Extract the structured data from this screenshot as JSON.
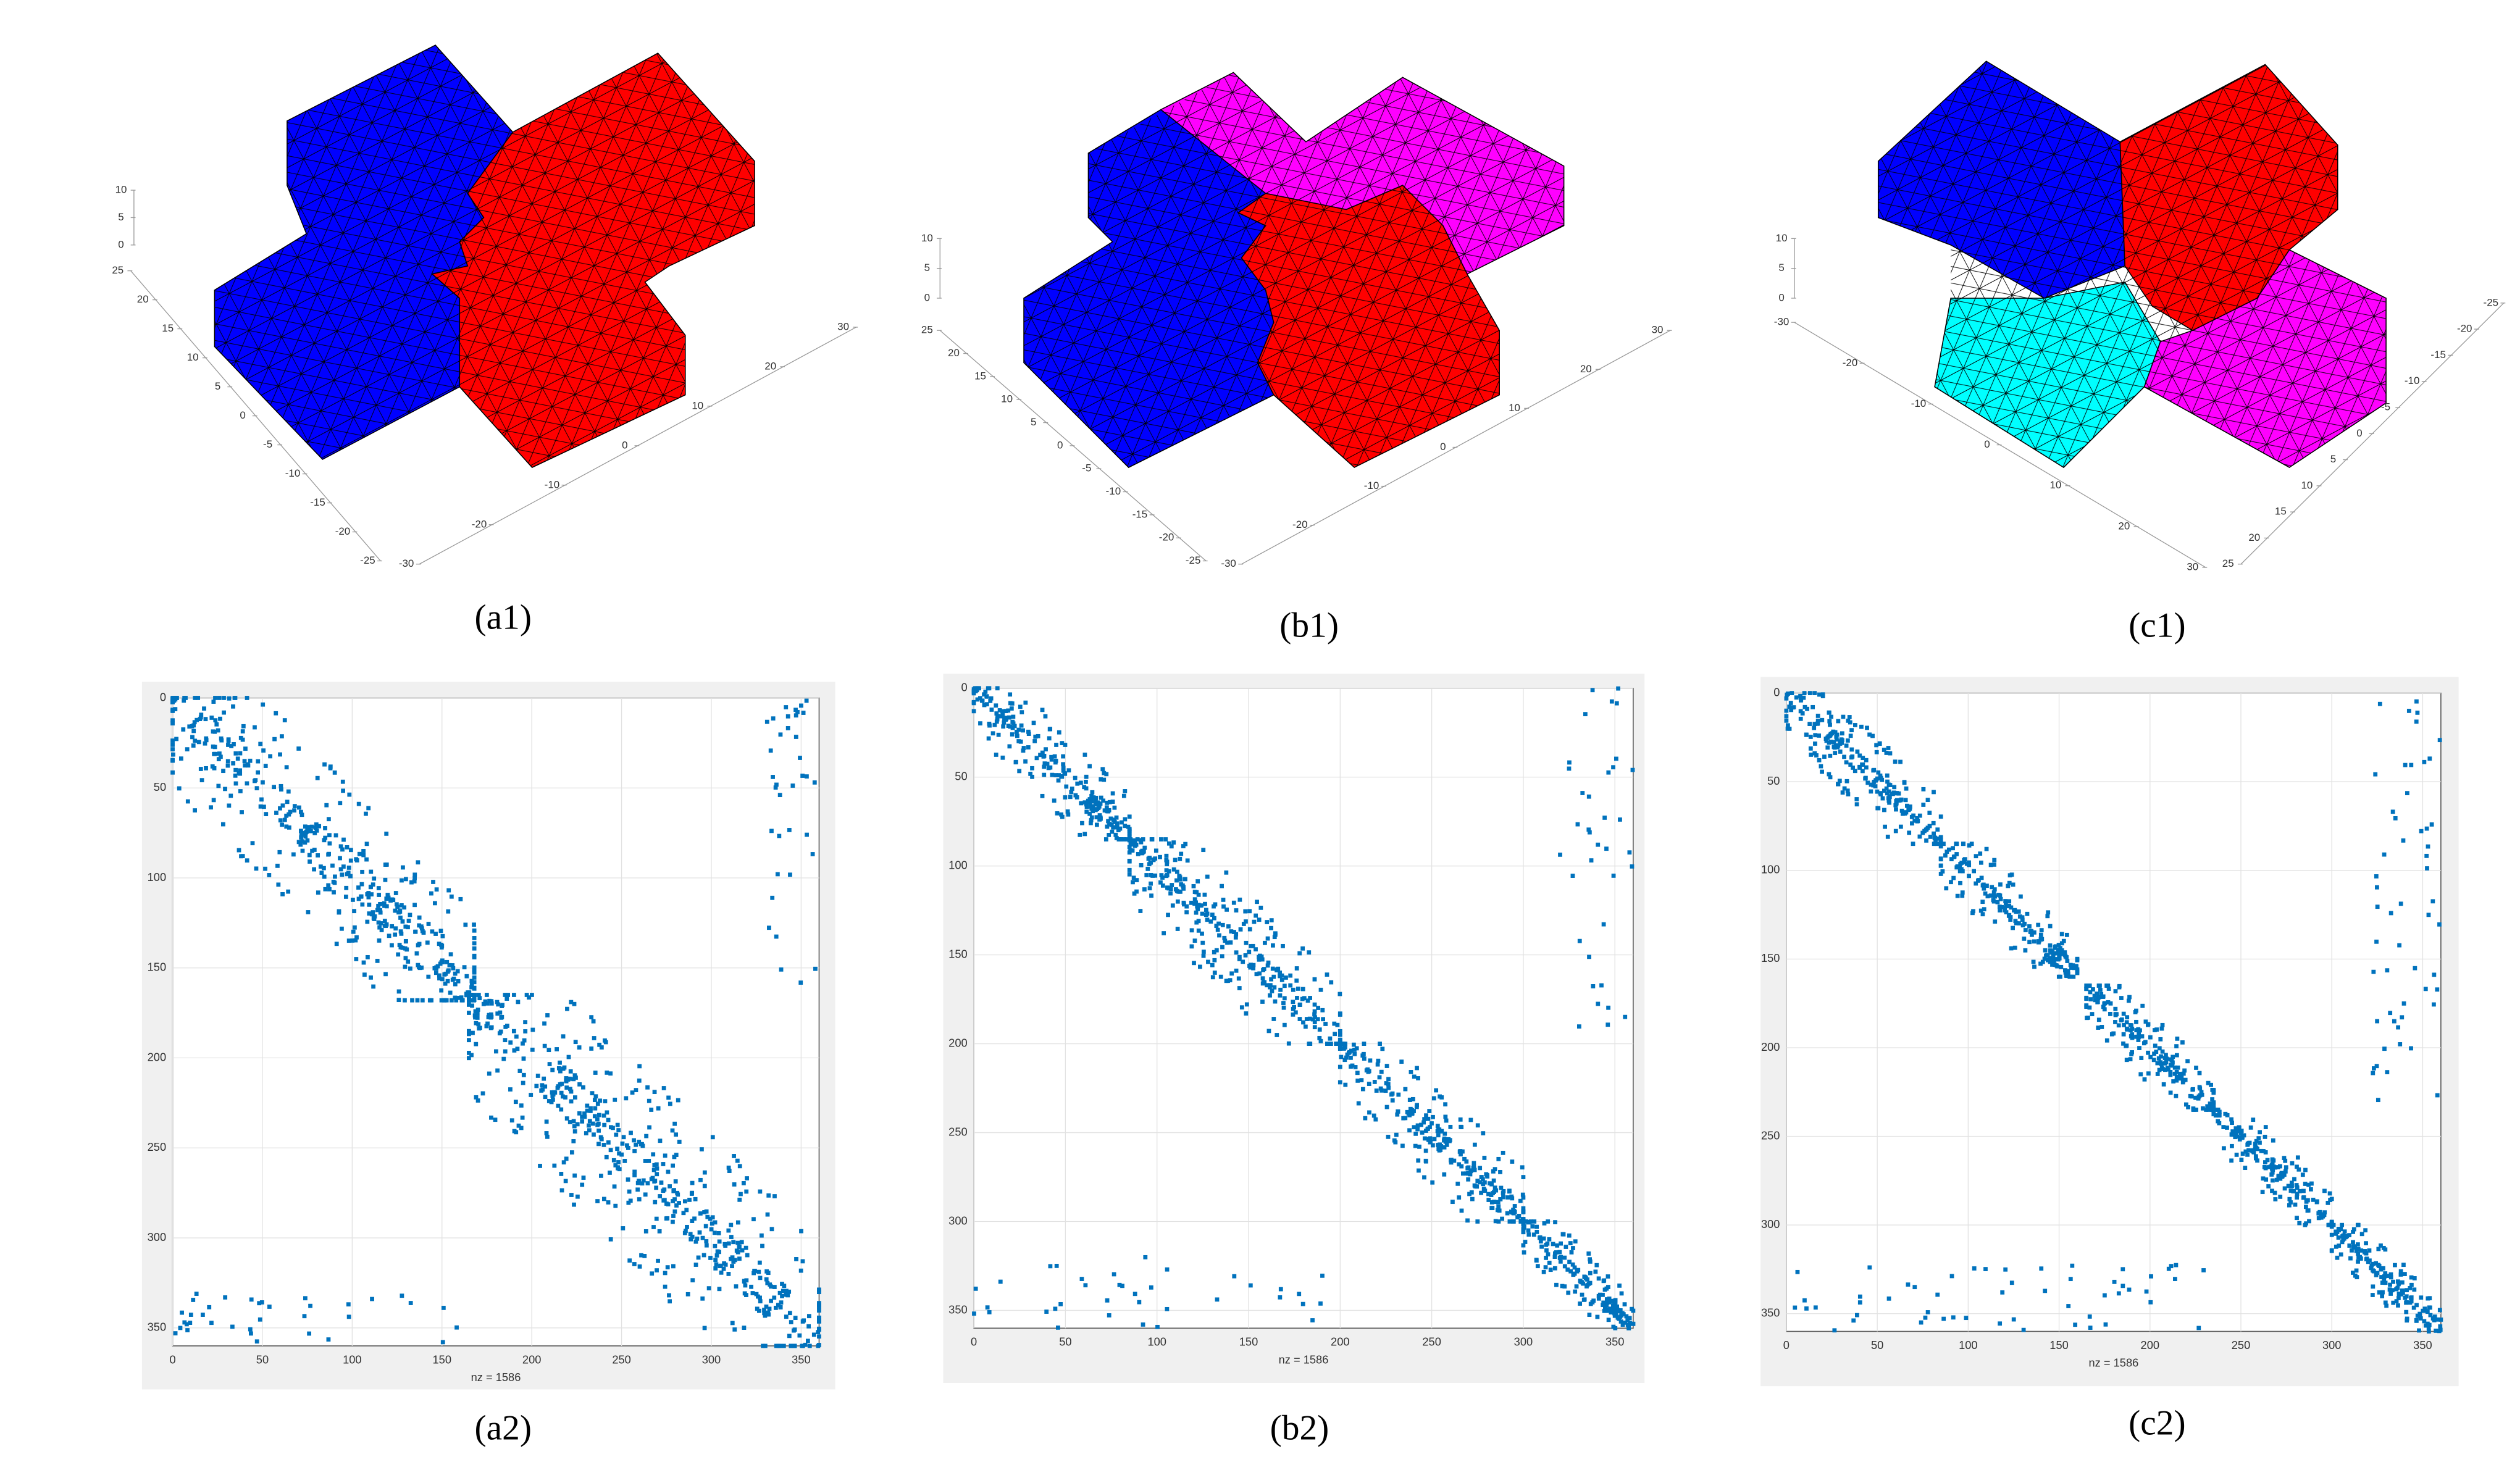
{
  "panels3d": [
    {
      "caption": "(a1)",
      "axes": [
        {
          "ticks": [
            10,
            5,
            0
          ]
        },
        {
          "ticks": [
            25,
            20,
            15,
            10,
            5,
            0,
            -5,
            -10,
            -15,
            -20,
            -25
          ]
        },
        {
          "ticks": [
            -30,
            -20,
            -10,
            0,
            10,
            20,
            30
          ]
        }
      ]
    },
    {
      "caption": "(b1)",
      "axes": [
        {
          "ticks": [
            10,
            5,
            0
          ]
        },
        {
          "ticks": [
            25,
            20,
            15,
            10,
            5,
            0,
            -5,
            -10,
            -15,
            -20,
            -25
          ]
        },
        {
          "ticks": [
            -30,
            -20,
            -10,
            0,
            10,
            20,
            30
          ]
        }
      ]
    },
    {
      "caption": "(c1)",
      "axes": [
        {
          "ticks": [
            10,
            5,
            0
          ]
        },
        {
          "ticks": [
            -30,
            -20,
            -10,
            0,
            10,
            20,
            30
          ]
        },
        {
          "ticks": [
            25,
            20,
            15,
            10,
            5,
            0,
            -5,
            -10,
            -15,
            -20,
            -25
          ]
        }
      ]
    }
  ],
  "spy": [
    {
      "caption": "(a2)",
      "xlabel": "nz = 1586",
      "xlim": [
        0,
        360
      ],
      "ylim": [
        0,
        360
      ],
      "xticks": [
        0,
        50,
        100,
        150,
        200,
        250,
        300,
        350
      ],
      "yticks": [
        0,
        50,
        100,
        150,
        200,
        250,
        300,
        350
      ]
    },
    {
      "caption": "(b2)",
      "xlabel": "nz = 1586",
      "xlim": [
        0,
        360
      ],
      "ylim": [
        0,
        360
      ],
      "xticks": [
        0,
        50,
        100,
        150,
        200,
        250,
        300,
        350
      ],
      "yticks": [
        0,
        50,
        100,
        150,
        200,
        250,
        300,
        350
      ]
    },
    {
      "caption": "(c2)",
      "xlabel": "nz = 1586",
      "xlim": [
        0,
        360
      ],
      "ylim": [
        0,
        360
      ],
      "xticks": [
        0,
        50,
        100,
        150,
        200,
        250,
        300,
        350
      ],
      "yticks": [
        0,
        50,
        100,
        150,
        200,
        250,
        300,
        350
      ]
    }
  ]
}
